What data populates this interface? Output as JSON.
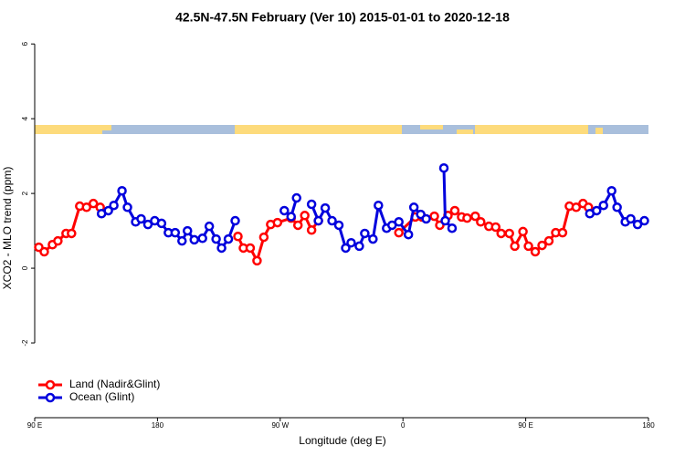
{
  "chart_data": {
    "type": "line",
    "title": "42.5N-47.5N February (Ver 10)   2015-01-01 to 2020-12-18",
    "x_label": "Longitude (deg E)",
    "y_label": "XCO2 - MLO trend (ppm)",
    "xlim": [
      90,
      540
    ],
    "ylim": [
      -4,
      6.2
    ],
    "xticks": [
      {
        "value": 90,
        "label": "90 E"
      },
      {
        "value": 180,
        "label": "180"
      },
      {
        "value": 270,
        "label": "90 W"
      },
      {
        "value": 360,
        "label": "0"
      },
      {
        "value": 450,
        "label": "90 E"
      },
      {
        "value": 540,
        "label": "180"
      }
    ],
    "yticks": [
      -2,
      0,
      2,
      4,
      6
    ],
    "legend": "bottom-left",
    "series": [
      {
        "name": "Land (Nadir&Glint)",
        "color": "#ff0000",
        "x": [
          93,
          97,
          103,
          107,
          113,
          117,
          123,
          128,
          133,
          138,
          190,
          239,
          243,
          248,
          253,
          258,
          263,
          268,
          278,
          283,
          288,
          293,
          298,
          330,
          357,
          369,
          374,
          383,
          387,
          393,
          398,
          403,
          407,
          413,
          417,
          423,
          428,
          432,
          438,
          442,
          448,
          452,
          457,
          462,
          467,
          472,
          477,
          482,
          487,
          492,
          496
        ],
        "values": [
          0.56,
          0.44,
          0.63,
          0.73,
          0.93,
          0.93,
          1.66,
          1.63,
          1.73,
          1.63,
          null,
          0.85,
          0.54,
          0.54,
          0.2,
          0.83,
          1.17,
          1.22,
          1.34,
          1.15,
          1.41,
          1.02,
          1.27,
          null,
          0.95,
          1.37,
          1.37,
          1.39,
          1.15,
          1.41,
          1.54,
          1.37,
          1.34,
          1.39,
          1.24,
          1.12,
          1.1,
          0.93,
          0.93,
          0.59,
          0.98,
          0.59,
          0.44,
          0.61,
          0.73,
          0.95,
          0.95,
          1.66,
          1.63,
          1.73,
          1.63
        ]
      },
      {
        "name": "Ocean (Glint)",
        "color": "#0000dd",
        "x": [
          139,
          144,
          148,
          154,
          158,
          164,
          168,
          173,
          178,
          183,
          188,
          193,
          198,
          202,
          207,
          213,
          218,
          223,
          227,
          232,
          237,
          255,
          273,
          278,
          282,
          288,
          293,
          298,
          303,
          308,
          313,
          318,
          322,
          328,
          332,
          338,
          342,
          348,
          352,
          357,
          364,
          368,
          373,
          377,
          384,
          390,
          391,
          396,
          450,
          497,
          502,
          507,
          513,
          517,
          523,
          527,
          532,
          537
        ],
        "values": [
          1.46,
          1.54,
          1.68,
          2.07,
          1.63,
          1.24,
          1.32,
          1.17,
          1.27,
          1.2,
          0.95,
          0.95,
          0.73,
          1.0,
          0.76,
          0.8,
          1.12,
          0.78,
          0.54,
          0.78,
          1.27,
          null,
          1.54,
          1.38,
          1.88,
          null,
          1.71,
          1.27,
          1.61,
          1.27,
          1.15,
          0.54,
          0.68,
          0.59,
          0.93,
          0.78,
          1.68,
          1.07,
          1.15,
          1.24,
          0.9,
          1.63,
          1.44,
          1.32,
          null,
          2.68,
          1.27,
          1.07,
          null,
          1.46,
          1.54,
          1.68,
          2.07,
          1.63,
          1.24,
          1.32,
          1.17,
          1.27
        ]
      }
    ]
  }
}
